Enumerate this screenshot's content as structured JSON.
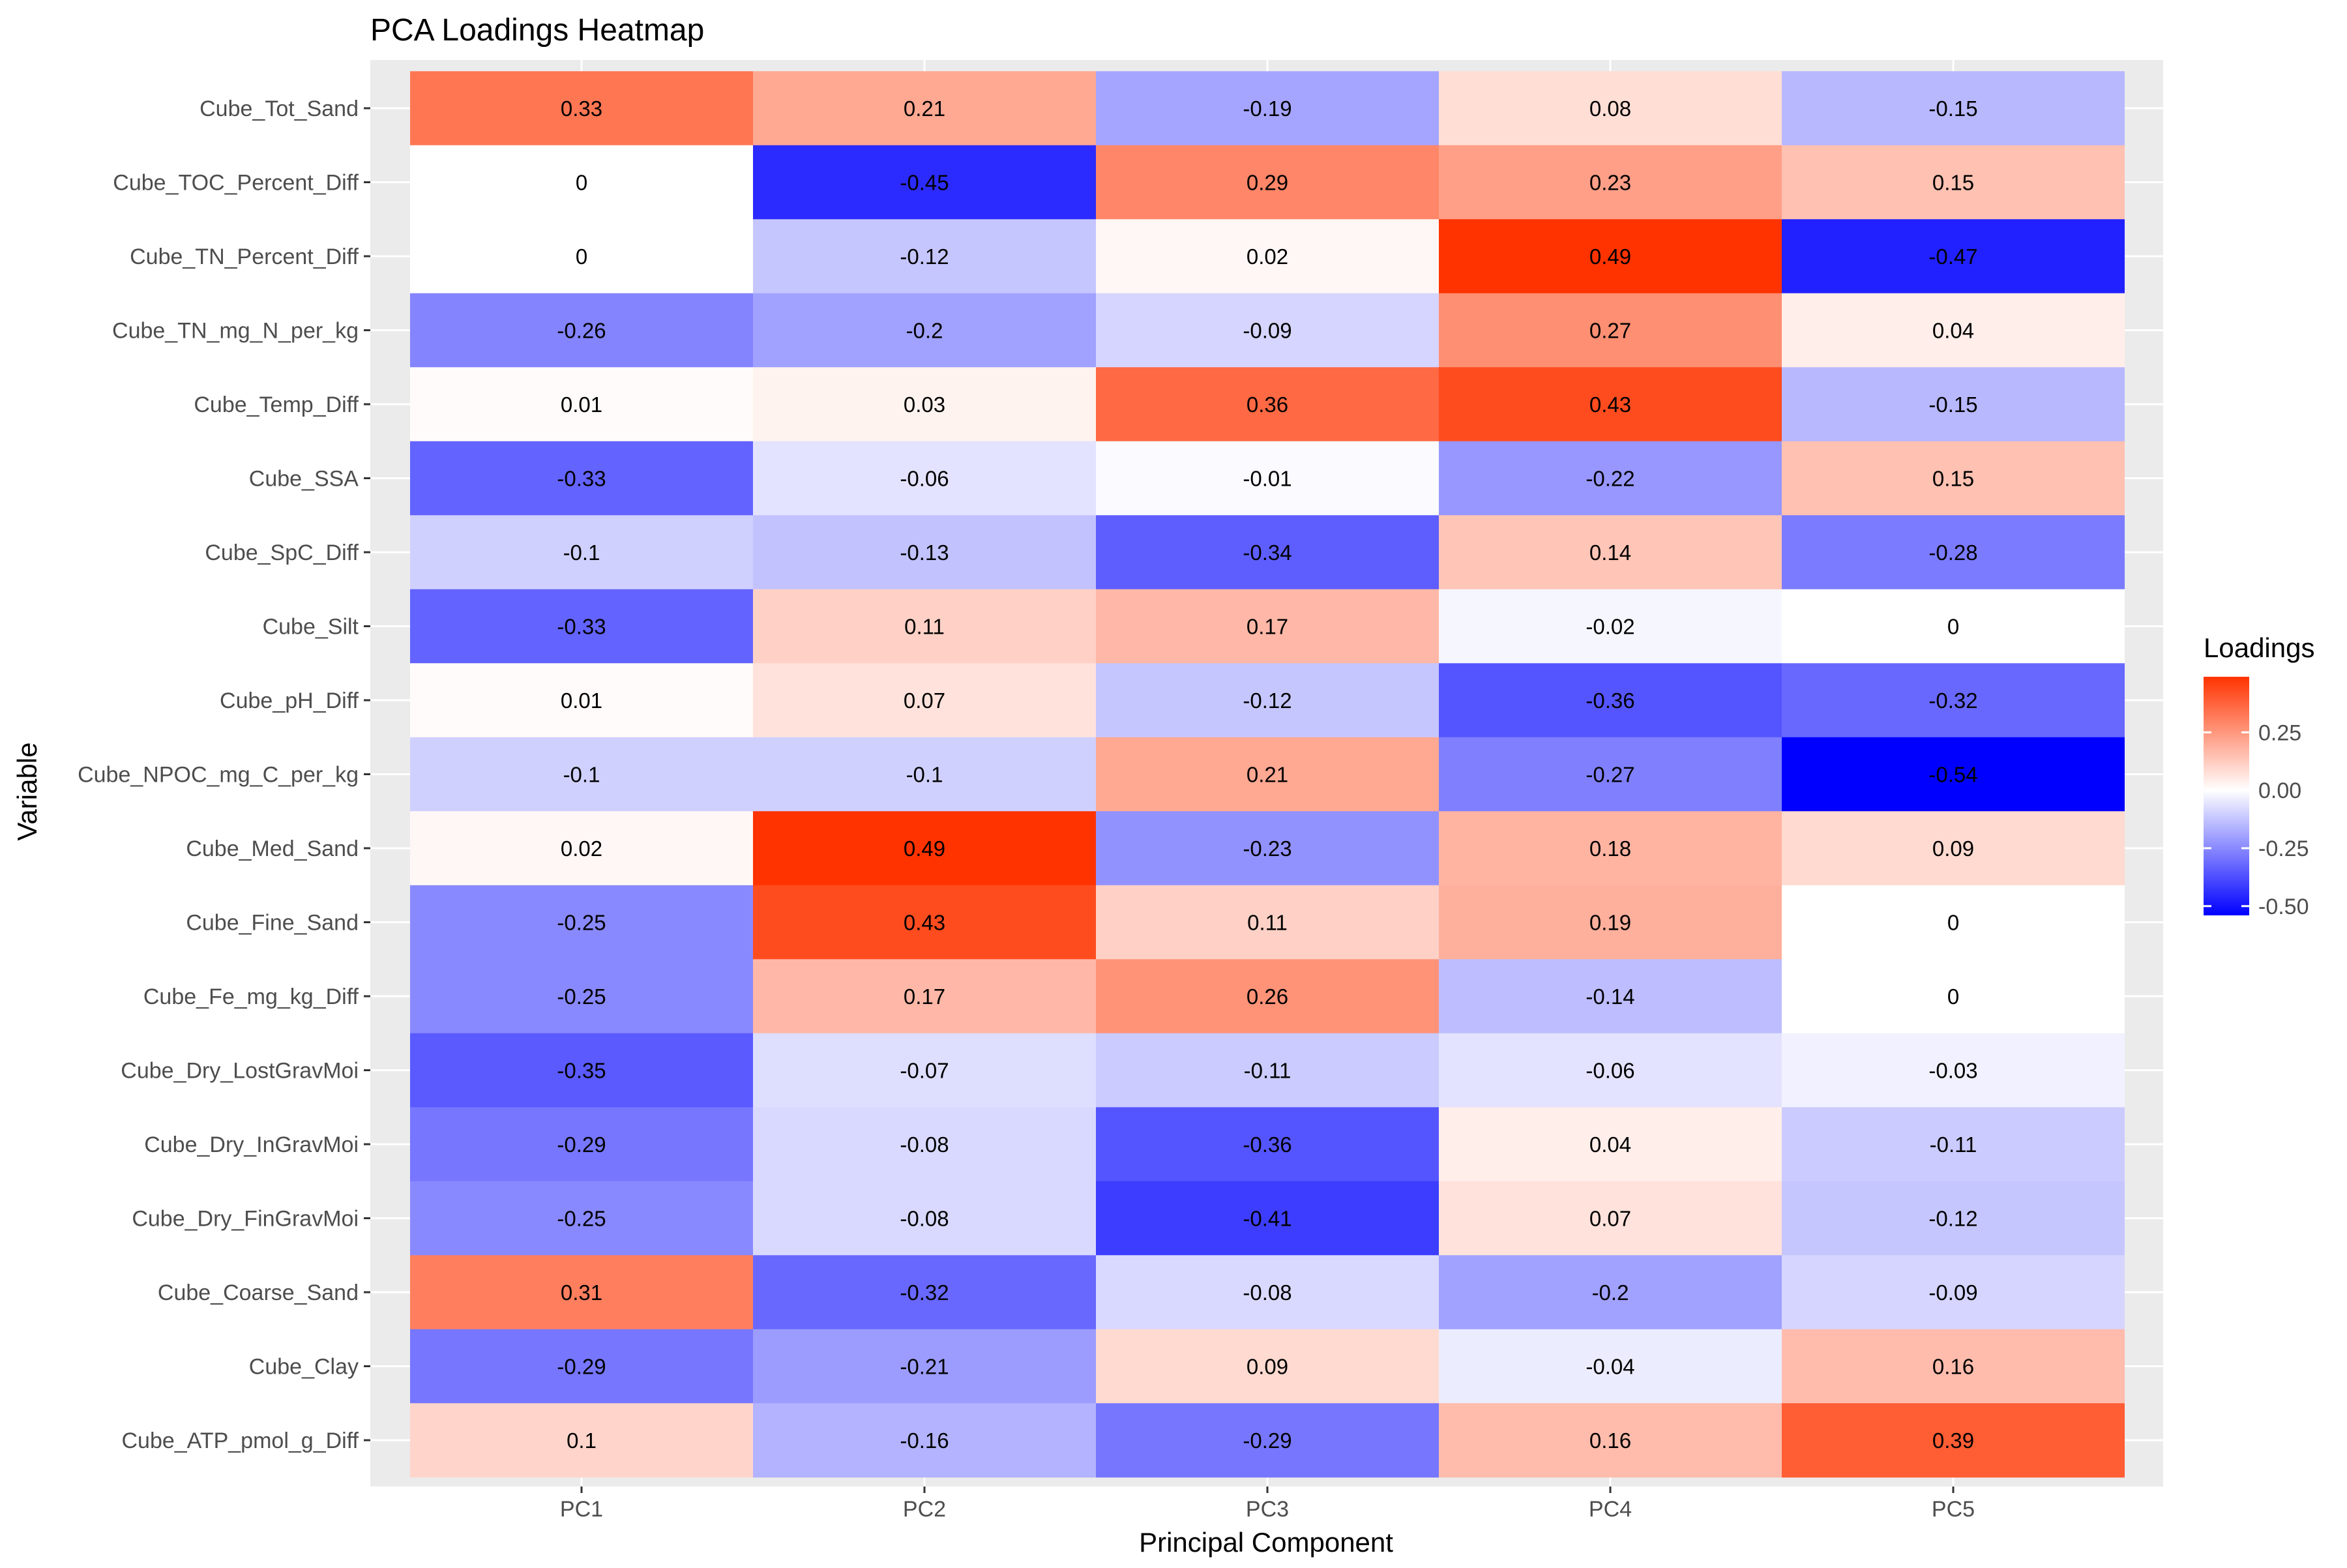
{
  "chart_data": {
    "type": "heatmap",
    "title": "PCA Loadings Heatmap",
    "xlabel": "Principal Component",
    "ylabel": "Variable",
    "x": [
      "PC1",
      "PC2",
      "PC3",
      "PC4",
      "PC5"
    ],
    "y": [
      "Cube_Tot_Sand",
      "Cube_TOC_Percent_Diff",
      "Cube_TN_Percent_Diff",
      "Cube_TN_mg_N_per_kg",
      "Cube_Temp_Diff",
      "Cube_SSA",
      "Cube_SpC_Diff",
      "Cube_Silt",
      "Cube_pH_Diff",
      "Cube_NPOC_mg_C_per_kg",
      "Cube_Med_Sand",
      "Cube_Fine_Sand",
      "Cube_Fe_mg_kg_Diff",
      "Cube_Dry_LostGravMoi",
      "Cube_Dry_InGravMoi",
      "Cube_Dry_FinGravMoi",
      "Cube_Coarse_Sand",
      "Cube_Clay",
      "Cube_ATP_pmol_g_Diff"
    ],
    "values": [
      [
        0.33,
        0.21,
        -0.19,
        0.08,
        -0.15
      ],
      [
        0,
        -0.45,
        0.29,
        0.23,
        0.15
      ],
      [
        0,
        -0.12,
        0.02,
        0.49,
        -0.47
      ],
      [
        -0.26,
        -0.2,
        -0.09,
        0.27,
        0.04
      ],
      [
        0.01,
        0.03,
        0.36,
        0.43,
        -0.15
      ],
      [
        -0.33,
        -0.06,
        -0.01,
        -0.22,
        0.15
      ],
      [
        -0.1,
        -0.13,
        -0.34,
        0.14,
        -0.28
      ],
      [
        -0.33,
        0.11,
        0.17,
        -0.02,
        0
      ],
      [
        0.01,
        0.07,
        -0.12,
        -0.36,
        -0.32
      ],
      [
        -0.1,
        -0.1,
        0.21,
        -0.27,
        -0.54
      ],
      [
        0.02,
        0.49,
        -0.23,
        0.18,
        0.09
      ],
      [
        -0.25,
        0.43,
        0.11,
        0.19,
        0
      ],
      [
        -0.25,
        0.17,
        0.26,
        -0.14,
        0
      ],
      [
        -0.35,
        -0.07,
        -0.11,
        -0.06,
        -0.03
      ],
      [
        -0.29,
        -0.08,
        -0.36,
        0.04,
        -0.11
      ],
      [
        -0.25,
        -0.08,
        -0.41,
        0.07,
        -0.12
      ],
      [
        0.31,
        -0.32,
        -0.08,
        -0.2,
        -0.09
      ],
      [
        -0.29,
        -0.21,
        0.09,
        -0.04,
        0.16
      ],
      [
        0.1,
        -0.16,
        -0.29,
        0.16,
        0.39
      ]
    ],
    "legend": {
      "title": "Loadings",
      "position": "right",
      "breaks": [
        0.25,
        0.0,
        -0.25,
        -0.5
      ],
      "break_labels": [
        "0.25",
        "0.00",
        "-0.25",
        "-0.50"
      ],
      "range": [
        -0.54,
        0.49
      ]
    },
    "colors": {
      "low": "#0000ff",
      "mid": "#ffffff",
      "high": "#ff3300",
      "panel_background": "#ebebeb",
      "grid": "#ffffff"
    },
    "grid": true
  }
}
